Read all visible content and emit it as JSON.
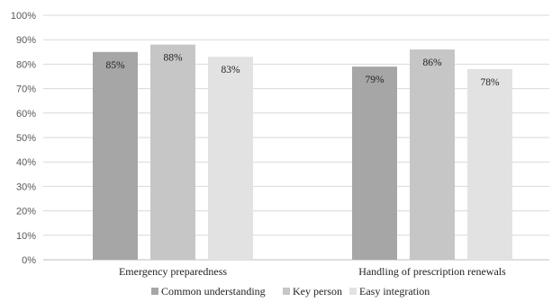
{
  "chart_data": {
    "type": "bar",
    "categories": [
      "Emergency preparedness",
      "Handling of prescription renewals"
    ],
    "series": [
      {
        "name": "Common understanding",
        "values": [
          85,
          79
        ],
        "color": "#a6a6a6"
      },
      {
        "name": "Key person",
        "values": [
          88,
          86
        ],
        "color": "#c6c6c6"
      },
      {
        "name": "Easy integration",
        "values": [
          83,
          78
        ],
        "color": "#e2e2e2"
      }
    ],
    "data_labels": [
      [
        "85%",
        "79%"
      ],
      [
        "88%",
        "86%"
      ],
      [
        "83%",
        "78%"
      ]
    ],
    "y_ticks": [
      "0%",
      "10%",
      "20%",
      "30%",
      "40%",
      "50%",
      "60%",
      "70%",
      "80%",
      "90%",
      "100%"
    ],
    "ylim": [
      0,
      100
    ],
    "grid": true,
    "legend_position": "bottom",
    "title": "",
    "xlabel": "",
    "ylabel": ""
  }
}
